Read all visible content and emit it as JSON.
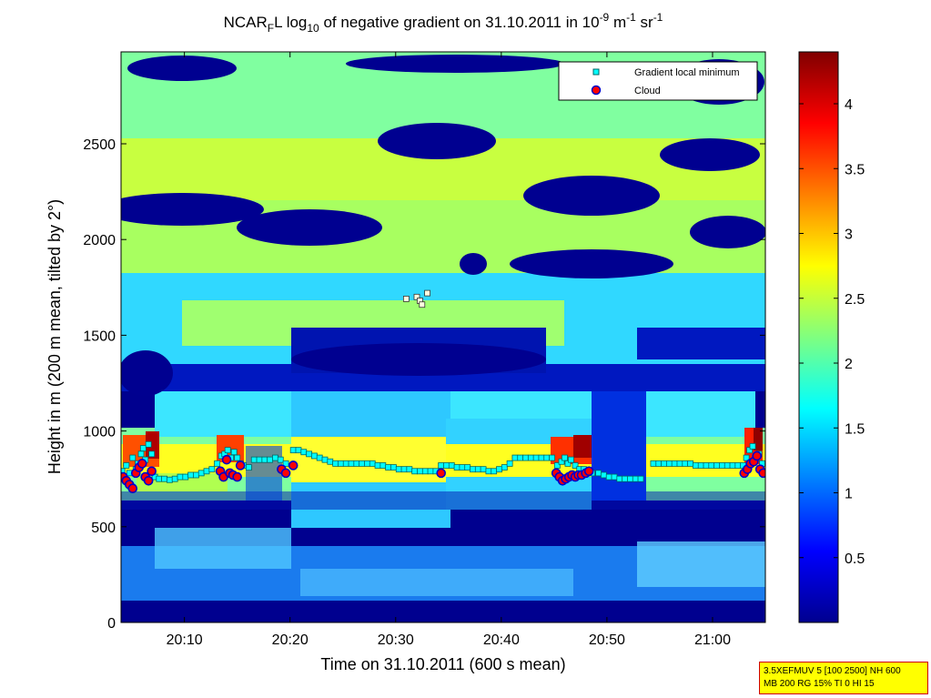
{
  "chart_data": {
    "type": "heatmap",
    "title": {
      "t1": "NCAR",
      "t1sub": "F",
      "t2": "L log",
      "t2sub": "10",
      "t3": " of negative gradient on 31.10.2011 in 10",
      "t3sup": "-9",
      "t4": " m",
      "t4sup": "-1",
      "t5": " sr",
      "t5sup": "-1"
    },
    "xlabel": "Time on 31.10.2011 (600 s mean)",
    "ylabel": "Height in m (200 m mean, tilted by 2°)",
    "x_unit": "minutes after 20:00",
    "xlim": [
      4,
      65
    ],
    "ylim": [
      0,
      2980
    ],
    "xticks": [
      {
        "value": 10,
        "label": "20:10"
      },
      {
        "value": 20,
        "label": "20:20"
      },
      {
        "value": 30,
        "label": "20:30"
      },
      {
        "value": 40,
        "label": "20:40"
      },
      {
        "value": 50,
        "label": "20:50"
      },
      {
        "value": 60,
        "label": "21:00"
      }
    ],
    "yticks": [
      0,
      500,
      1000,
      1500,
      2000,
      2500
    ],
    "colorbar": {
      "range": [
        0,
        4.4
      ],
      "ticks": [
        "0.5",
        "1",
        "1.5",
        "2",
        "2.5",
        "3",
        "3.5",
        "4"
      ],
      "tick_values": [
        0.5,
        1,
        1.5,
        2,
        2.5,
        3,
        3.5,
        4
      ],
      "colormap": "jet"
    },
    "legend": {
      "placement": "top-right",
      "entries": [
        {
          "label": "Gradient local minimum",
          "marker": "square",
          "color": "#00ffff"
        },
        {
          "label": "Cloud",
          "marker": "circle",
          "color": "#ff0000"
        }
      ]
    },
    "series": [
      {
        "name": "Gradient local minimum",
        "points": [
          [
            4.1,
            790
          ],
          [
            4.5,
            820
          ],
          [
            4.8,
            780
          ],
          [
            5.1,
            860
          ],
          [
            5.4,
            800
          ],
          [
            5.6,
            830
          ],
          [
            5.9,
            880
          ],
          [
            6.1,
            910
          ],
          [
            6.3,
            850
          ],
          [
            6.6,
            930
          ],
          [
            6.9,
            880
          ],
          [
            7.2,
            760
          ],
          [
            7.6,
            750
          ],
          [
            8.1,
            750
          ],
          [
            8.6,
            745
          ],
          [
            9.1,
            750
          ],
          [
            9.6,
            760
          ],
          [
            10.1,
            760
          ],
          [
            10.6,
            770
          ],
          [
            11.1,
            770
          ],
          [
            11.6,
            780
          ],
          [
            12.1,
            790
          ],
          [
            12.6,
            800
          ],
          [
            13.1,
            830
          ],
          [
            13.5,
            870
          ],
          [
            13.8,
            880
          ],
          [
            14.1,
            900
          ],
          [
            14.4,
            860
          ],
          [
            14.7,
            890
          ],
          [
            15.0,
            860
          ],
          [
            15.3,
            830
          ],
          [
            15.6,
            820
          ],
          [
            16.1,
            810
          ],
          [
            16.6,
            850
          ],
          [
            17.1,
            850
          ],
          [
            17.6,
            850
          ],
          [
            18.1,
            850
          ],
          [
            18.6,
            860
          ],
          [
            19.1,
            850
          ],
          [
            19.6,
            830
          ],
          [
            20.3,
            900
          ],
          [
            20.8,
            900
          ],
          [
            21.3,
            890
          ],
          [
            21.8,
            880
          ],
          [
            22.3,
            870
          ],
          [
            22.8,
            860
          ],
          [
            23.3,
            850
          ],
          [
            23.8,
            840
          ],
          [
            24.3,
            830
          ],
          [
            24.8,
            830
          ],
          [
            25.3,
            830
          ],
          [
            25.8,
            830
          ],
          [
            26.3,
            830
          ],
          [
            26.8,
            830
          ],
          [
            27.3,
            830
          ],
          [
            27.8,
            830
          ],
          [
            28.3,
            820
          ],
          [
            28.8,
            820
          ],
          [
            29.3,
            810
          ],
          [
            29.8,
            810
          ],
          [
            30.3,
            800
          ],
          [
            30.8,
            800
          ],
          [
            31.3,
            800
          ],
          [
            31.8,
            790
          ],
          [
            32.3,
            790
          ],
          [
            32.8,
            790
          ],
          [
            33.3,
            790
          ],
          [
            33.8,
            790
          ],
          [
            34.3,
            820
          ],
          [
            34.8,
            820
          ],
          [
            35.3,
            820
          ],
          [
            35.8,
            810
          ],
          [
            36.3,
            810
          ],
          [
            36.8,
            810
          ],
          [
            37.3,
            800
          ],
          [
            37.8,
            800
          ],
          [
            38.3,
            800
          ],
          [
            38.8,
            790
          ],
          [
            39.3,
            790
          ],
          [
            39.8,
            800
          ],
          [
            40.3,
            810
          ],
          [
            40.8,
            830
          ],
          [
            41.3,
            860
          ],
          [
            41.8,
            860
          ],
          [
            42.3,
            860
          ],
          [
            42.8,
            860
          ],
          [
            43.3,
            860
          ],
          [
            43.8,
            860
          ],
          [
            44.3,
            860
          ],
          [
            44.8,
            860
          ],
          [
            45.3,
            820
          ],
          [
            45.7,
            840
          ],
          [
            46.0,
            860
          ],
          [
            46.3,
            830
          ],
          [
            46.6,
            850
          ],
          [
            47.0,
            820
          ],
          [
            47.4,
            800
          ],
          [
            47.8,
            800
          ],
          [
            48.2,
            790
          ],
          [
            48.6,
            780
          ],
          [
            49.2,
            780
          ],
          [
            49.7,
            770
          ],
          [
            50.2,
            760
          ],
          [
            50.7,
            760
          ],
          [
            51.2,
            750
          ],
          [
            51.7,
            750
          ],
          [
            52.2,
            750
          ],
          [
            52.7,
            750
          ],
          [
            53.2,
            750
          ],
          [
            54.4,
            830
          ],
          [
            54.9,
            830
          ],
          [
            55.4,
            830
          ],
          [
            55.9,
            830
          ],
          [
            56.4,
            830
          ],
          [
            56.9,
            830
          ],
          [
            57.4,
            830
          ],
          [
            57.9,
            830
          ],
          [
            58.4,
            820
          ],
          [
            58.9,
            820
          ],
          [
            59.4,
            820
          ],
          [
            59.9,
            820
          ],
          [
            60.4,
            820
          ],
          [
            60.9,
            820
          ],
          [
            61.4,
            820
          ],
          [
            61.9,
            820
          ],
          [
            62.4,
            820
          ],
          [
            62.9,
            820
          ],
          [
            63.2,
            860
          ],
          [
            63.5,
            900
          ],
          [
            63.8,
            920
          ],
          [
            64.1,
            860
          ],
          [
            64.4,
            880
          ],
          [
            64.7,
            830
          ],
          [
            31.0,
            1690
          ],
          [
            32.0,
            1700
          ],
          [
            32.3,
            1680
          ],
          [
            32.5,
            1660
          ],
          [
            33.0,
            1720
          ]
        ]
      },
      {
        "name": "Cloud",
        "points": [
          [
            4.2,
            760
          ],
          [
            4.5,
            740
          ],
          [
            4.8,
            720
          ],
          [
            5.1,
            700
          ],
          [
            5.4,
            780
          ],
          [
            5.7,
            810
          ],
          [
            6.0,
            830
          ],
          [
            6.3,
            760
          ],
          [
            6.6,
            740
          ],
          [
            6.9,
            790
          ],
          [
            13.4,
            790
          ],
          [
            13.7,
            760
          ],
          [
            14.0,
            850
          ],
          [
            14.3,
            780
          ],
          [
            14.6,
            770
          ],
          [
            15.0,
            760
          ],
          [
            15.3,
            820
          ],
          [
            19.2,
            800
          ],
          [
            19.6,
            780
          ],
          [
            20.3,
            820
          ],
          [
            34.3,
            780
          ],
          [
            45.2,
            780
          ],
          [
            45.5,
            760
          ],
          [
            45.8,
            740
          ],
          [
            46.1,
            750
          ],
          [
            46.4,
            760
          ],
          [
            46.7,
            770
          ],
          [
            47.0,
            760
          ],
          [
            47.3,
            770
          ],
          [
            47.6,
            770
          ],
          [
            48.0,
            780
          ],
          [
            48.3,
            790
          ],
          [
            63.0,
            780
          ],
          [
            63.3,
            800
          ],
          [
            63.6,
            830
          ],
          [
            63.9,
            840
          ],
          [
            64.2,
            870
          ],
          [
            64.5,
            800
          ],
          [
            64.8,
            780
          ]
        ]
      }
    ]
  },
  "info_box": {
    "line1": "3.5XEFMUV 5 [100 2500] NH 600",
    "line2": "MB 200 RG 15% TI 0 HI 15"
  },
  "colors": {
    "frame": "#000000",
    "min_marker_fill": "#00ffff",
    "min_marker_edge": "#006666",
    "cloud_marker_fill": "#ff0000",
    "cloud_marker_edge": "#0000cc",
    "info_box_bg": "#ffff00",
    "info_box_border": "#d00000"
  }
}
